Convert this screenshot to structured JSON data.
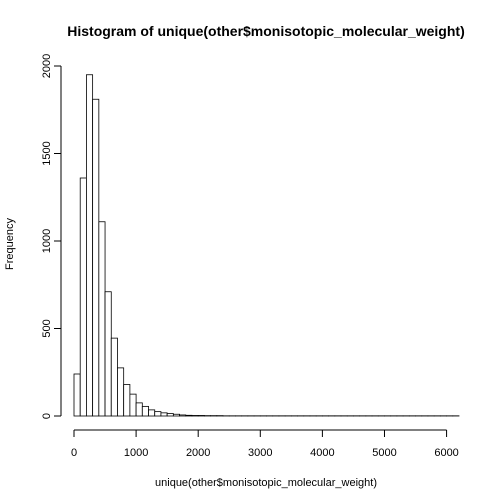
{
  "chart_data": {
    "type": "bar",
    "title": "Histogram of unique(other$monisotopic_molecular_weight)",
    "xlabel": "unique(other$monisotopic_molecular_weight)",
    "ylabel": "Frequency",
    "xlim": [
      0,
      6200
    ],
    "ylim": [
      0,
      2000
    ],
    "x_ticks": [
      0,
      1000,
      2000,
      3000,
      4000,
      5000,
      6000
    ],
    "y_ticks": [
      0,
      500,
      1000,
      1500,
      2000
    ],
    "bin_width": 100,
    "bin_start": 0,
    "values": [
      240,
      1360,
      1950,
      1810,
      1110,
      710,
      445,
      275,
      180,
      125,
      75,
      55,
      35,
      25,
      18,
      14,
      10,
      6,
      4,
      3,
      3,
      2,
      2,
      2,
      1,
      1,
      1,
      1,
      1,
      1,
      1,
      1,
      1,
      1,
      1,
      1,
      1,
      1,
      1,
      1,
      1,
      1,
      1,
      1,
      1,
      1,
      1,
      1,
      1,
      1,
      1,
      1,
      1,
      1,
      1,
      1,
      1,
      1,
      1,
      1,
      1,
      1
    ],
    "grid": false,
    "legend": "none"
  }
}
